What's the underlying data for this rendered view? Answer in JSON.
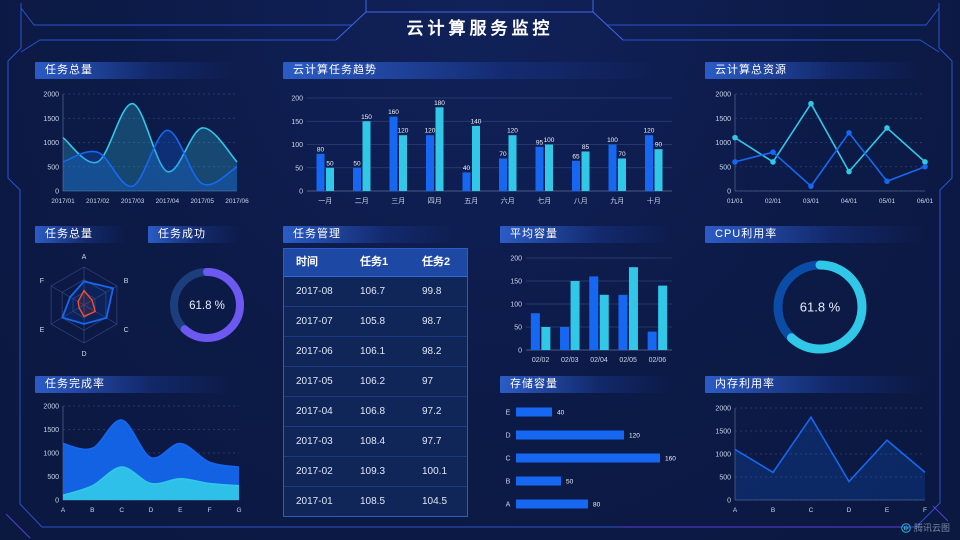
{
  "page": {
    "title": "云计算服务监控",
    "watermark": "腾讯云图"
  },
  "colors": {
    "background": "#0c1a47",
    "frame": "#2c52cc",
    "frame_bright": "#3e66e8",
    "frame_accent": "#5b3fd6",
    "blue": "#1668f2",
    "cyan": "#31c8e8",
    "purple": "#6d59f2",
    "red": "#f4502f",
    "axis_text": "#ccd6ec",
    "grid": "#2e4177"
  },
  "chart_data": [
    {
      "id": "task_total_area",
      "type": "area",
      "title": "任务总量",
      "categories": [
        "2017/01",
        "2017/02",
        "2017/03",
        "2017/04",
        "2017/05",
        "2017/06"
      ],
      "series": [
        {
          "name": "series-cyan",
          "color": "cyan",
          "values": [
            1100,
            600,
            1800,
            400,
            1300,
            600
          ]
        },
        {
          "name": "series-blue",
          "color": "blue",
          "values": [
            600,
            800,
            100,
            1250,
            150,
            500
          ]
        }
      ],
      "ylim": [
        0,
        2000
      ],
      "yticks": [
        0,
        500,
        1000,
        1500,
        2000
      ],
      "smooth": true,
      "grid": "dashed"
    },
    {
      "id": "task_trend",
      "type": "bar",
      "title": "云计算任务趋势",
      "categories": [
        "一月",
        "二月",
        "三月",
        "四月",
        "五月",
        "六月",
        "七月",
        "八月",
        "九月",
        "十月"
      ],
      "series": [
        {
          "name": "任务1",
          "color": "blue",
          "values": [
            80,
            50,
            160,
            120,
            40,
            70,
            95,
            65,
            100,
            120
          ]
        },
        {
          "name": "任务2",
          "color": "cyan",
          "values": [
            50,
            150,
            120,
            180,
            140,
            120,
            100,
            85,
            70,
            90
          ]
        }
      ],
      "ylim": [
        0,
        200
      ],
      "yticks": [
        0,
        50,
        100,
        150,
        200
      ],
      "value_labels": true
    },
    {
      "id": "cloud_resource",
      "type": "line",
      "title": "云计算总资源",
      "categories": [
        "01/01",
        "02/01",
        "03/01",
        "04/01",
        "05/01",
        "06/01"
      ],
      "series": [
        {
          "name": "series-cyan",
          "color": "cyan",
          "values": [
            1100,
            600,
            1800,
            400,
            1300,
            600
          ]
        },
        {
          "name": "series-blue",
          "color": "blue",
          "values": [
            600,
            800,
            100,
            1200,
            200,
            500
          ]
        }
      ],
      "ylim": [
        0,
        2000
      ],
      "yticks": [
        0,
        500,
        1000,
        1500,
        2000
      ],
      "markers": true,
      "grid": "dashed"
    },
    {
      "id": "task_radar",
      "type": "radar",
      "title": "任务总量",
      "axes": [
        "A",
        "B",
        "C",
        "D",
        "E",
        "F"
      ],
      "max": 100,
      "series": [
        {
          "name": "series-blue",
          "color": "blue",
          "values": [
            62,
            88,
            68,
            50,
            66,
            42
          ]
        },
        {
          "name": "series-red",
          "color": "red",
          "values": [
            38,
            25,
            34,
            30,
            15,
            18
          ]
        }
      ]
    },
    {
      "id": "task_success",
      "type": "donut",
      "title": "任务成功",
      "value": 61.8,
      "label": "61.8 %",
      "color": "purple",
      "track": "#1c3e7d"
    },
    {
      "id": "task_table",
      "type": "table",
      "title": "任务管理",
      "headers": [
        "时间",
        "任务1",
        "任务2"
      ],
      "rows": [
        [
          "2017-08",
          "106.7",
          "99.8"
        ],
        [
          "2017-07",
          "105.8",
          "98.7"
        ],
        [
          "2017-06",
          "106.1",
          "98.2"
        ],
        [
          "2017-05",
          "106.2",
          "97"
        ],
        [
          "2017-04",
          "106.8",
          "97.2"
        ],
        [
          "2017-03",
          "108.4",
          "97.7"
        ],
        [
          "2017-02",
          "109.3",
          "100.1"
        ],
        [
          "2017-01",
          "108.5",
          "104.5"
        ]
      ]
    },
    {
      "id": "avg_capacity",
      "type": "bar",
      "title": "平均容量",
      "categories": [
        "02/02",
        "02/03",
        "02/04",
        "02/05",
        "02/06"
      ],
      "series": [
        {
          "name": "series-blue",
          "color": "blue",
          "values": [
            80,
            50,
            160,
            120,
            40
          ]
        },
        {
          "name": "series-cyan",
          "color": "cyan",
          "values": [
            50,
            150,
            120,
            180,
            140
          ]
        }
      ],
      "ylim": [
        0,
        200
      ],
      "yticks": [
        0,
        50,
        100,
        150,
        200
      ],
      "value_labels": false
    },
    {
      "id": "cpu_usage",
      "type": "donut",
      "title": "CPU利用率",
      "value": 61.8,
      "label": "61.8 %",
      "color": "cyan",
      "track": "#0b4ca6"
    },
    {
      "id": "completion",
      "type": "area",
      "title": "任务完成率",
      "categories": [
        "A",
        "B",
        "C",
        "D",
        "E",
        "F",
        "G"
      ],
      "series": [
        {
          "name": "series-blue",
          "color": "blue",
          "values": [
            1200,
            1100,
            1700,
            900,
            1200,
            800,
            700
          ],
          "solid": true
        },
        {
          "name": "series-cyan",
          "color": "cyan",
          "values": [
            100,
            300,
            700,
            350,
            450,
            350,
            300
          ],
          "solid": true
        }
      ],
      "ylim": [
        0,
        2000
      ],
      "yticks": [
        0,
        500,
        1000,
        1500,
        2000
      ],
      "smooth": true,
      "grid": "dashed"
    },
    {
      "id": "storage",
      "type": "hbar",
      "title": "存储容量",
      "categories": [
        "E",
        "D",
        "C",
        "B",
        "A"
      ],
      "values": [
        40,
        120,
        160,
        50,
        80
      ],
      "xmax": 170
    },
    {
      "id": "memory",
      "type": "line",
      "title": "内存利用率",
      "categories": [
        "A",
        "B",
        "C",
        "D",
        "E",
        "F"
      ],
      "series": [
        {
          "name": "series-blue",
          "color": "blue",
          "values": [
            1100,
            600,
            1800,
            400,
            1300,
            600
          ],
          "area": true
        }
      ],
      "ylim": [
        0,
        2000
      ],
      "yticks": [
        0,
        500,
        1000,
        1500,
        2000
      ],
      "grid": "dashed"
    }
  ]
}
